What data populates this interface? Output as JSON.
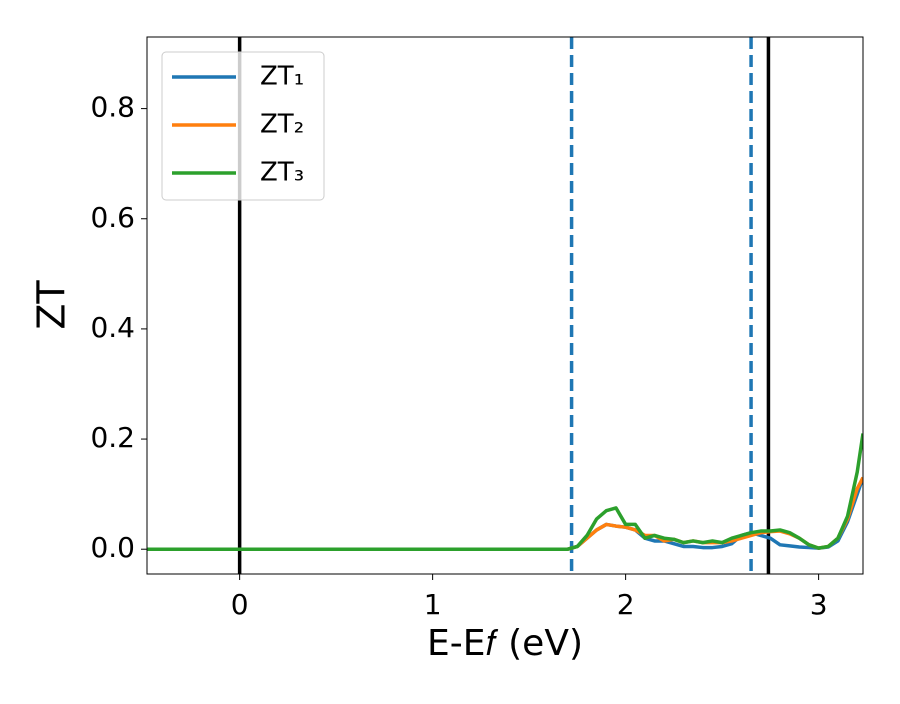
{
  "chart_data": {
    "type": "line",
    "xlabel": "E-E𝑓 (eV)",
    "ylabel": "ZT",
    "x": [
      -0.48,
      1.0,
      1.7,
      1.75,
      1.8,
      1.85,
      1.9,
      1.95,
      2.0,
      2.05,
      2.1,
      2.15,
      2.2,
      2.25,
      2.3,
      2.35,
      2.4,
      2.45,
      2.5,
      2.55,
      2.6,
      2.65,
      2.7,
      2.75,
      2.8,
      2.85,
      2.9,
      2.95,
      3.0,
      3.05,
      3.1,
      3.15,
      3.2,
      3.23
    ],
    "series": [
      {
        "name": "ZT₁",
        "color": "#1f77b4",
        "values": [
          0,
          0,
          0,
          0.005,
          0.02,
          0.035,
          0.045,
          0.042,
          0.04,
          0.035,
          0.02,
          0.015,
          0.015,
          0.01,
          0.005,
          0.005,
          0.003,
          0.003,
          0.005,
          0.01,
          0.025,
          0.03,
          0.025,
          0.02,
          0.008,
          0.006,
          0.004,
          0.003,
          0.002,
          0.004,
          0.015,
          0.05,
          0.1,
          0.13
        ]
      },
      {
        "name": "ZT₂",
        "color": "#ff7f0e",
        "values": [
          0,
          0,
          0,
          0.005,
          0.02,
          0.035,
          0.045,
          0.042,
          0.04,
          0.035,
          0.025,
          0.025,
          0.015,
          0.018,
          0.012,
          0.015,
          0.012,
          0.012,
          0.012,
          0.015,
          0.02,
          0.025,
          0.03,
          0.032,
          0.033,
          0.028,
          0.02,
          0.008,
          0.002,
          0.005,
          0.02,
          0.055,
          0.11,
          0.13
        ]
      },
      {
        "name": "ZT₃",
        "color": "#2ca02c",
        "values": [
          0,
          0,
          0,
          0.005,
          0.025,
          0.055,
          0.07,
          0.075,
          0.045,
          0.045,
          0.02,
          0.025,
          0.02,
          0.018,
          0.012,
          0.015,
          0.012,
          0.015,
          0.012,
          0.02,
          0.025,
          0.03,
          0.033,
          0.033,
          0.035,
          0.03,
          0.02,
          0.008,
          0.002,
          0.005,
          0.02,
          0.06,
          0.14,
          0.21
        ]
      }
    ],
    "vlines": [
      {
        "x": 0,
        "color": "#000000",
        "style": "solid"
      },
      {
        "x": 2.74,
        "color": "#000000",
        "style": "solid"
      },
      {
        "x": 1.72,
        "color": "#1f77b4",
        "style": "dashed"
      },
      {
        "x": 2.65,
        "color": "#1f77b4",
        "style": "dashed"
      }
    ],
    "xlim": [
      -0.48,
      3.23
    ],
    "ylim": [
      -0.045,
      0.93
    ],
    "xticks": [
      0,
      1,
      2,
      3
    ],
    "yticks": [
      {
        "value": 0,
        "label": "0.0"
      },
      0.2,
      0.4,
      0.6,
      0.8
    ],
    "legend": "upper-left"
  }
}
